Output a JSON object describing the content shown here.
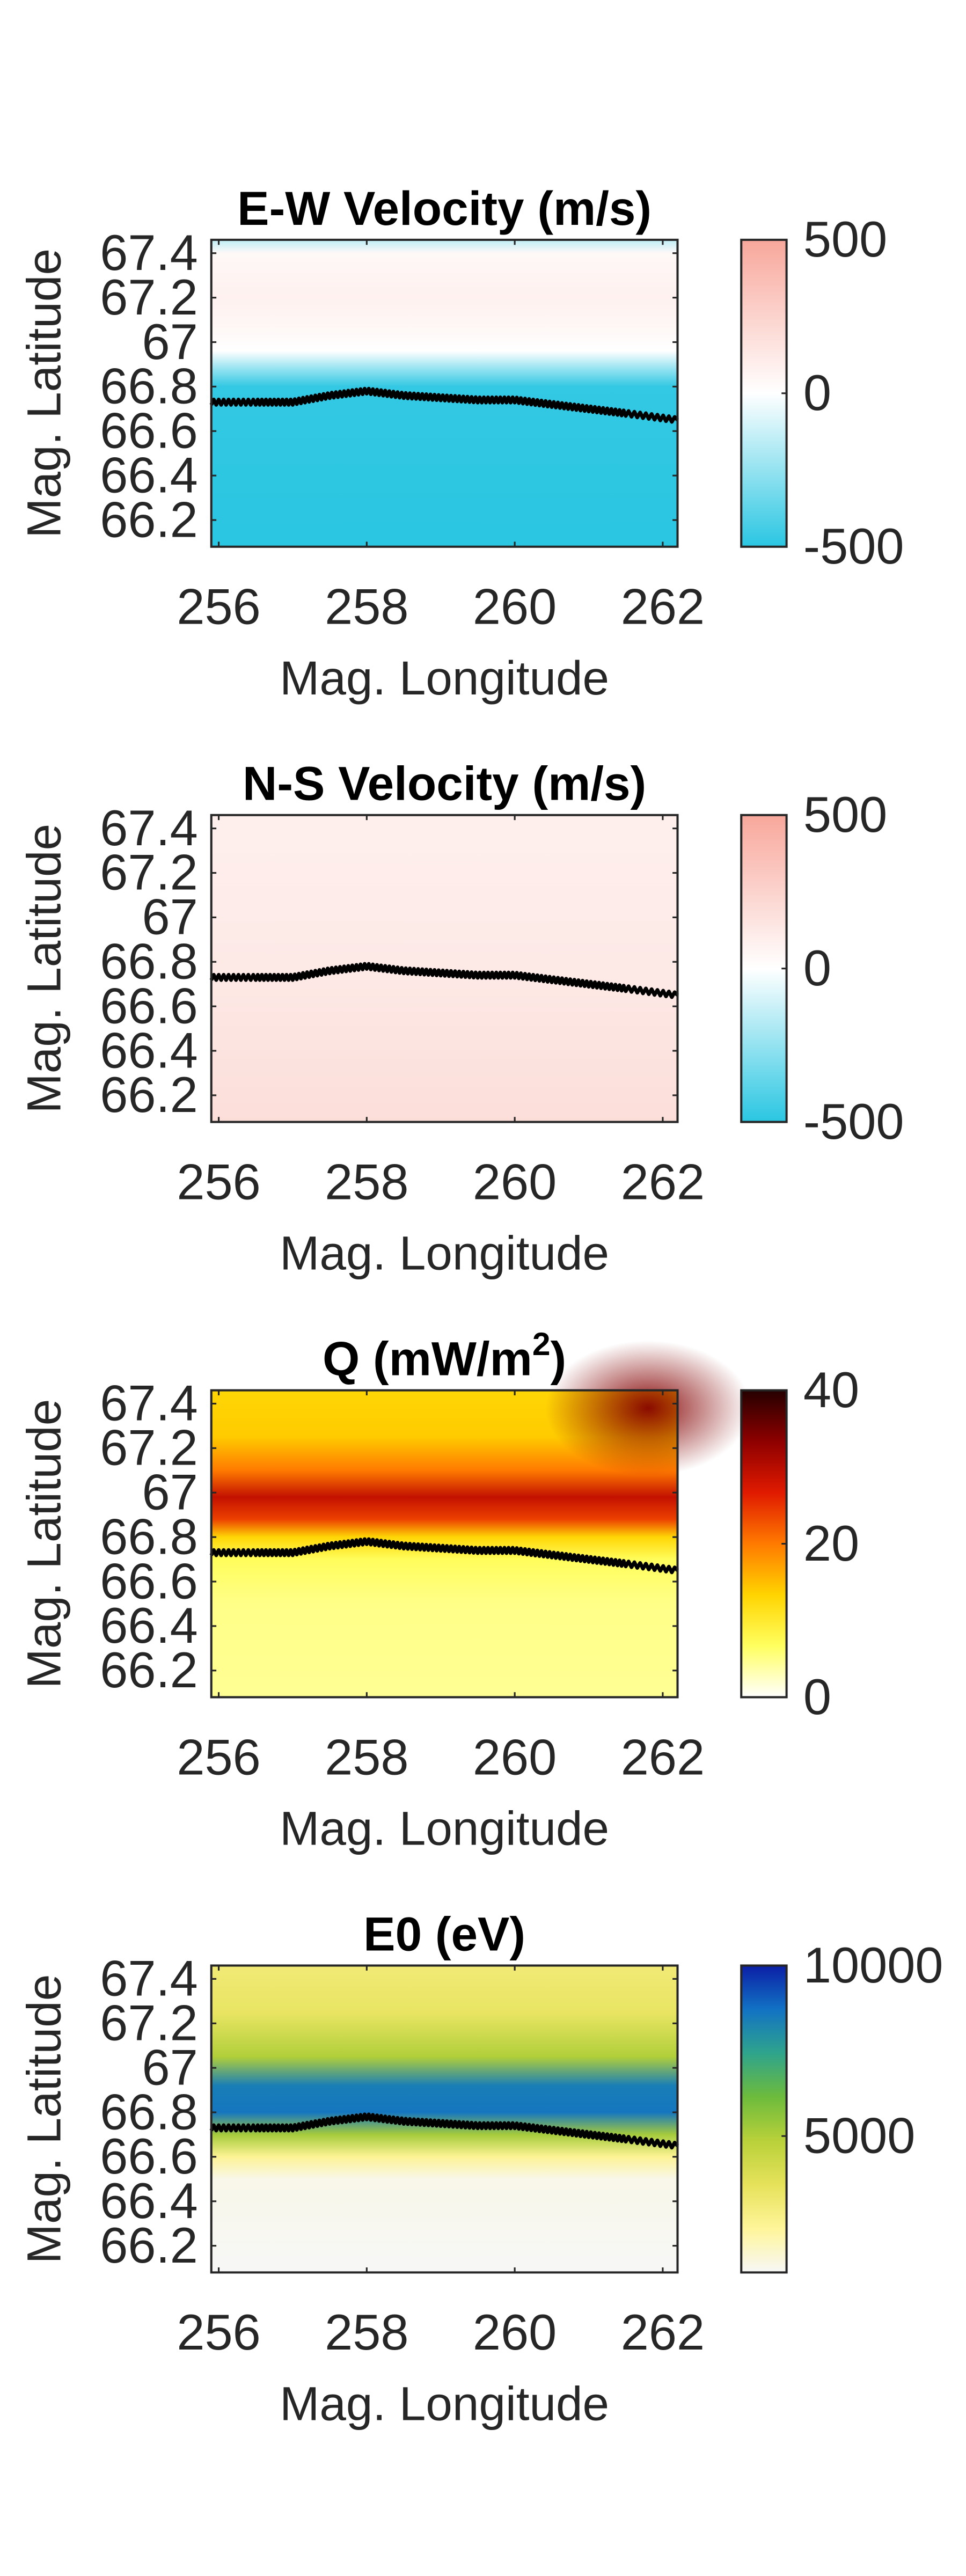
{
  "chart_data": [
    {
      "type": "heatmap",
      "title": "E-W Velocity (m/s)",
      "xlabel": "Mag. Longitude",
      "ylabel": "Mag. Latitude",
      "xlim": [
        255.9,
        262.2
      ],
      "ylim": [
        66.08,
        67.46
      ],
      "xticks": [
        "256",
        "258",
        "260",
        "262"
      ],
      "yticks": [
        "66.2",
        "66.4",
        "66.6",
        "66.8",
        "67",
        "67.2",
        "67.4"
      ],
      "colorbar": {
        "ticks": [
          "500",
          "0",
          "-500"
        ],
        "tick_values": [
          500,
          0,
          -500
        ],
        "range": [
          -500,
          500
        ],
        "colormap": "cyan-white-salmon",
        "stops": [
          "#2ac6e2",
          "#ffffff",
          "#f8a79b"
        ]
      },
      "field": {
        "longitude": [
          256,
          258,
          260,
          262
        ],
        "latitude_profile": [
          {
            "lat": 67.46,
            "value": -150
          },
          {
            "lat": 67.4,
            "value": 40
          },
          {
            "lat": 67.2,
            "value": 80
          },
          {
            "lat": 67.05,
            "value": 40
          },
          {
            "lat": 66.96,
            "value": 0
          },
          {
            "lat": 66.88,
            "value": -250
          },
          {
            "lat": 66.8,
            "value": -480
          },
          {
            "lat": 66.08,
            "value": -500
          }
        ]
      },
      "boundary_line": {
        "color": "#000000",
        "points": [
          [
            255.9,
            66.73
          ],
          [
            256.5,
            66.73
          ],
          [
            257.0,
            66.73
          ],
          [
            257.5,
            66.76
          ],
          [
            258.0,
            66.78
          ],
          [
            258.5,
            66.76
          ],
          [
            259.0,
            66.75
          ],
          [
            259.5,
            66.74
          ],
          [
            260.0,
            66.74
          ],
          [
            260.5,
            66.72
          ],
          [
            261.0,
            66.7
          ],
          [
            261.5,
            66.68
          ],
          [
            262.2,
            66.65
          ]
        ]
      }
    },
    {
      "type": "heatmap",
      "title": "N-S Velocity (m/s)",
      "xlabel": "Mag. Longitude",
      "ylabel": "Mag. Latitude",
      "xlim": [
        255.9,
        262.2
      ],
      "ylim": [
        66.08,
        67.46
      ],
      "xticks": [
        "256",
        "258",
        "260",
        "262"
      ],
      "yticks": [
        "66.2",
        "66.4",
        "66.6",
        "66.8",
        "67",
        "67.2",
        "67.4"
      ],
      "colorbar": {
        "ticks": [
          "500",
          "0",
          "-500"
        ],
        "tick_values": [
          500,
          0,
          -500
        ],
        "range": [
          -500,
          500
        ],
        "colormap": "cyan-white-salmon",
        "stops": [
          "#2ac6e2",
          "#ffffff",
          "#f8a79b"
        ]
      },
      "field": {
        "longitude": [
          256,
          258,
          260,
          262
        ],
        "latitude_profile": [
          {
            "lat": 67.46,
            "value": 90
          },
          {
            "lat": 66.8,
            "value": 120
          },
          {
            "lat": 66.08,
            "value": 190
          }
        ]
      },
      "boundary_line": {
        "color": "#000000",
        "points": [
          [
            255.9,
            66.73
          ],
          [
            256.5,
            66.73
          ],
          [
            257.0,
            66.73
          ],
          [
            257.5,
            66.76
          ],
          [
            258.0,
            66.78
          ],
          [
            258.5,
            66.76
          ],
          [
            259.0,
            66.75
          ],
          [
            259.5,
            66.74
          ],
          [
            260.0,
            66.74
          ],
          [
            260.5,
            66.72
          ],
          [
            261.0,
            66.7
          ],
          [
            261.5,
            66.68
          ],
          [
            262.2,
            66.65
          ]
        ]
      }
    },
    {
      "type": "heatmap",
      "title": "Q (mW/m",
      "title_superscript": "2",
      "title_suffix": ")",
      "xlabel": "Mag. Longitude",
      "ylabel": "Mag. Latitude",
      "xlim": [
        255.9,
        262.2
      ],
      "ylim": [
        66.08,
        67.46
      ],
      "xticks": [
        "256",
        "258",
        "260",
        "262"
      ],
      "yticks": [
        "66.2",
        "66.4",
        "66.6",
        "66.8",
        "67",
        "67.2",
        "67.4"
      ],
      "colorbar": {
        "ticks": [
          "40",
          "20",
          "0"
        ],
        "tick_values": [
          40,
          20,
          0
        ],
        "range": [
          0,
          40
        ],
        "colormap": "hot",
        "stops": [
          "#ffffff",
          "#ffff60",
          "#ffd400",
          "#ff7a00",
          "#e01a00",
          "#8e0000",
          "#250000"
        ]
      },
      "field": {
        "longitude": [
          256,
          258,
          260,
          262
        ],
        "latitude_profile": [
          {
            "lat": 67.46,
            "value": 13
          },
          {
            "lat": 67.25,
            "value": 14
          },
          {
            "lat": 67.1,
            "value": 20
          },
          {
            "lat": 66.98,
            "value": 29
          },
          {
            "lat": 66.88,
            "value": 24
          },
          {
            "lat": 66.8,
            "value": 13
          },
          {
            "lat": 66.7,
            "value": 7
          },
          {
            "lat": 66.5,
            "value": 5
          },
          {
            "lat": 66.08,
            "value": 4.5
          }
        ],
        "hotspot": {
          "longitude": 261.8,
          "latitude": 67.38,
          "value": 34
        }
      },
      "boundary_line": {
        "color": "#000000",
        "points": [
          [
            255.9,
            66.73
          ],
          [
            256.5,
            66.73
          ],
          [
            257.0,
            66.73
          ],
          [
            257.5,
            66.76
          ],
          [
            258.0,
            66.78
          ],
          [
            258.5,
            66.76
          ],
          [
            259.0,
            66.75
          ],
          [
            259.5,
            66.74
          ],
          [
            260.0,
            66.74
          ],
          [
            260.5,
            66.72
          ],
          [
            261.0,
            66.7
          ],
          [
            261.5,
            66.68
          ],
          [
            262.2,
            66.65
          ]
        ]
      }
    },
    {
      "type": "heatmap",
      "title": "E0 (eV)",
      "xlabel": "Mag. Longitude",
      "ylabel": "Mag. Latitude",
      "xlim": [
        255.9,
        262.2
      ],
      "ylim": [
        66.08,
        67.46
      ],
      "xticks": [
        "256",
        "258",
        "260",
        "262"
      ],
      "yticks": [
        "66.2",
        "66.4",
        "66.6",
        "66.8",
        "67",
        "67.2",
        "67.4"
      ],
      "colorbar": {
        "ticks": [
          "10000",
          "5000"
        ],
        "tick_values": [
          10000,
          5000
        ],
        "range": [
          1000,
          10000
        ],
        "colormap": "white-yellow-green-blue",
        "stops": [
          "#f7f7f7",
          "#fff59a",
          "#e6e25a",
          "#b9d13a",
          "#6dbb3c",
          "#2fa48c",
          "#1272c4",
          "#0b1fa6"
        ]
      },
      "field": {
        "longitude": [
          256,
          258,
          260,
          262
        ],
        "latitude_profile": [
          {
            "lat": 67.46,
            "value": 3000
          },
          {
            "lat": 67.25,
            "value": 3400
          },
          {
            "lat": 67.05,
            "value": 5000
          },
          {
            "lat": 66.92,
            "value": 8400
          },
          {
            "lat": 66.8,
            "value": 8600
          },
          {
            "lat": 66.7,
            "value": 5200
          },
          {
            "lat": 66.6,
            "value": 2400
          },
          {
            "lat": 66.5,
            "value": 1200
          },
          {
            "lat": 66.08,
            "value": 1000
          }
        ]
      },
      "boundary_line": {
        "color": "#000000",
        "points": [
          [
            255.9,
            66.73
          ],
          [
            256.5,
            66.73
          ],
          [
            257.0,
            66.73
          ],
          [
            257.5,
            66.76
          ],
          [
            258.0,
            66.78
          ],
          [
            258.5,
            66.76
          ],
          [
            259.0,
            66.75
          ],
          [
            259.5,
            66.74
          ],
          [
            260.0,
            66.74
          ],
          [
            260.5,
            66.72
          ],
          [
            261.0,
            66.7
          ],
          [
            261.5,
            66.68
          ],
          [
            262.2,
            66.65
          ]
        ]
      }
    }
  ]
}
